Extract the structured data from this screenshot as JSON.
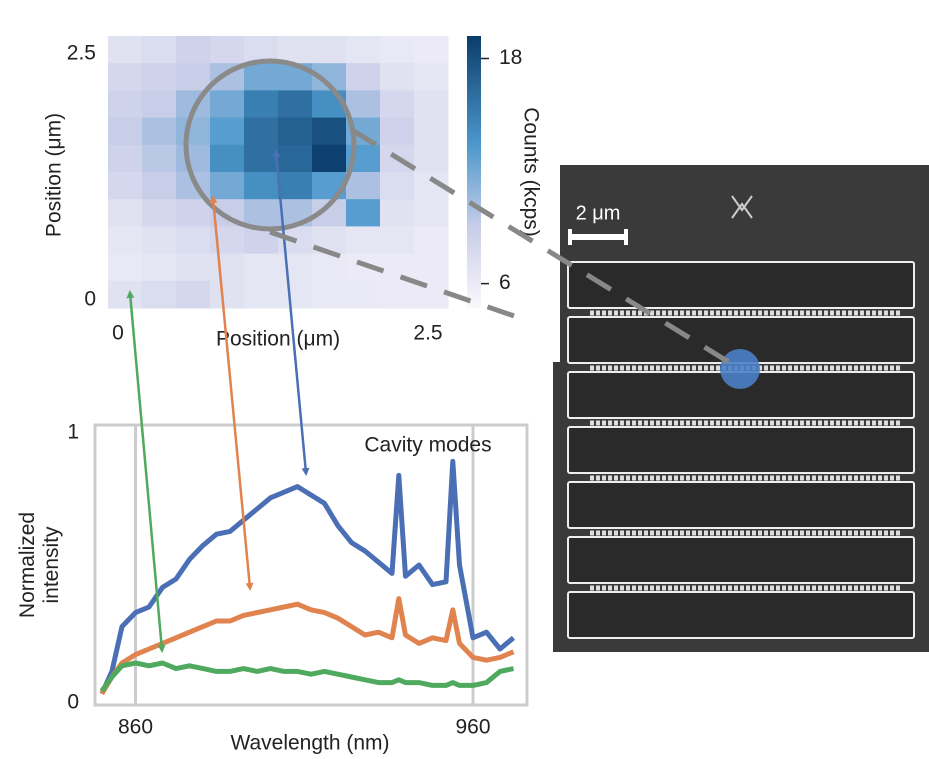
{
  "chart_data": [
    {
      "type": "heatmap",
      "xlabel": "Position (μm)",
      "ylabel": "Position (μm)",
      "colorbar_label": "Counts (kcps)",
      "xlim": [
        0,
        2.5
      ],
      "ylim": [
        0,
        2.5
      ],
      "xticks": [
        0,
        2.5
      ],
      "yticks": [
        0,
        2.5
      ],
      "clim": [
        4.7,
        19.2
      ],
      "cticks": [
        6,
        18
      ],
      "values": [
        [
          7,
          7.5,
          8.5,
          8,
          7.5,
          7,
          7,
          6.5,
          6.2,
          6
        ],
        [
          8,
          8.5,
          9,
          10,
          12,
          12,
          11,
          8.5,
          7,
          6.5
        ],
        [
          8.5,
          9,
          10.5,
          12,
          15,
          16,
          14,
          10,
          8,
          7
        ],
        [
          9,
          10,
          11,
          13,
          16,
          17,
          18,
          12,
          8.5,
          7
        ],
        [
          8.5,
          9.5,
          10.5,
          14,
          16,
          16.5,
          19,
          13,
          8,
          7
        ],
        [
          8,
          9,
          10,
          12,
          14,
          15,
          13,
          10,
          7.5,
          6.5
        ],
        [
          7,
          8,
          8.5,
          9,
          10,
          10,
          9,
          13,
          7,
          6.5
        ],
        [
          6.5,
          7,
          7.5,
          8,
          8.5,
          7.5,
          7,
          6.5,
          6.5,
          6
        ],
        [
          6.2,
          6.5,
          7,
          7,
          6.5,
          6.5,
          6.2,
          6,
          6,
          6
        ],
        [
          7,
          7.5,
          8,
          7,
          6.5,
          6.5,
          6.2,
          6.1,
          6,
          6
        ]
      ]
    },
    {
      "type": "line",
      "xlabel": "Wavelength (nm)",
      "ylabel": "Normalized intensity",
      "annotation": "Cavity modes",
      "xlim": [
        848,
        976
      ],
      "ylim": [
        0,
        1
      ],
      "xticks": [
        860,
        960
      ],
      "yticks": [
        0,
        1
      ],
      "grid": true,
      "x": [
        850,
        853,
        856,
        860,
        864,
        868,
        872,
        876,
        880,
        884,
        888,
        892,
        896,
        900,
        904,
        908,
        912,
        916,
        920,
        924,
        928,
        932,
        936,
        938,
        940,
        944,
        948,
        952,
        954,
        956,
        960,
        964,
        968,
        972
      ],
      "series": [
        {
          "color": "#4a6fb5",
          "values": [
            0.04,
            0.12,
            0.28,
            0.33,
            0.35,
            0.42,
            0.45,
            0.52,
            0.57,
            0.61,
            0.62,
            0.66,
            0.7,
            0.74,
            0.76,
            0.78,
            0.75,
            0.72,
            0.64,
            0.58,
            0.55,
            0.51,
            0.47,
            0.82,
            0.46,
            0.5,
            0.43,
            0.44,
            0.87,
            0.5,
            0.24,
            0.26,
            0.2,
            0.24
          ]
        },
        {
          "color": "#e0834f",
          "values": [
            0.04,
            0.1,
            0.15,
            0.18,
            0.2,
            0.22,
            0.24,
            0.26,
            0.28,
            0.3,
            0.3,
            0.32,
            0.33,
            0.34,
            0.35,
            0.36,
            0.34,
            0.33,
            0.31,
            0.28,
            0.25,
            0.26,
            0.24,
            0.38,
            0.25,
            0.22,
            0.24,
            0.23,
            0.34,
            0.22,
            0.17,
            0.16,
            0.17,
            0.19
          ]
        },
        {
          "color": "#4fa95e",
          "values": [
            0.05,
            0.1,
            0.14,
            0.15,
            0.14,
            0.15,
            0.13,
            0.14,
            0.13,
            0.12,
            0.12,
            0.13,
            0.12,
            0.13,
            0.12,
            0.12,
            0.11,
            0.12,
            0.11,
            0.1,
            0.09,
            0.08,
            0.08,
            0.09,
            0.08,
            0.08,
            0.07,
            0.07,
            0.08,
            0.07,
            0.07,
            0.08,
            0.12,
            0.13
          ]
        }
      ]
    }
  ],
  "image": {
    "scale_bar": "2 μm"
  }
}
